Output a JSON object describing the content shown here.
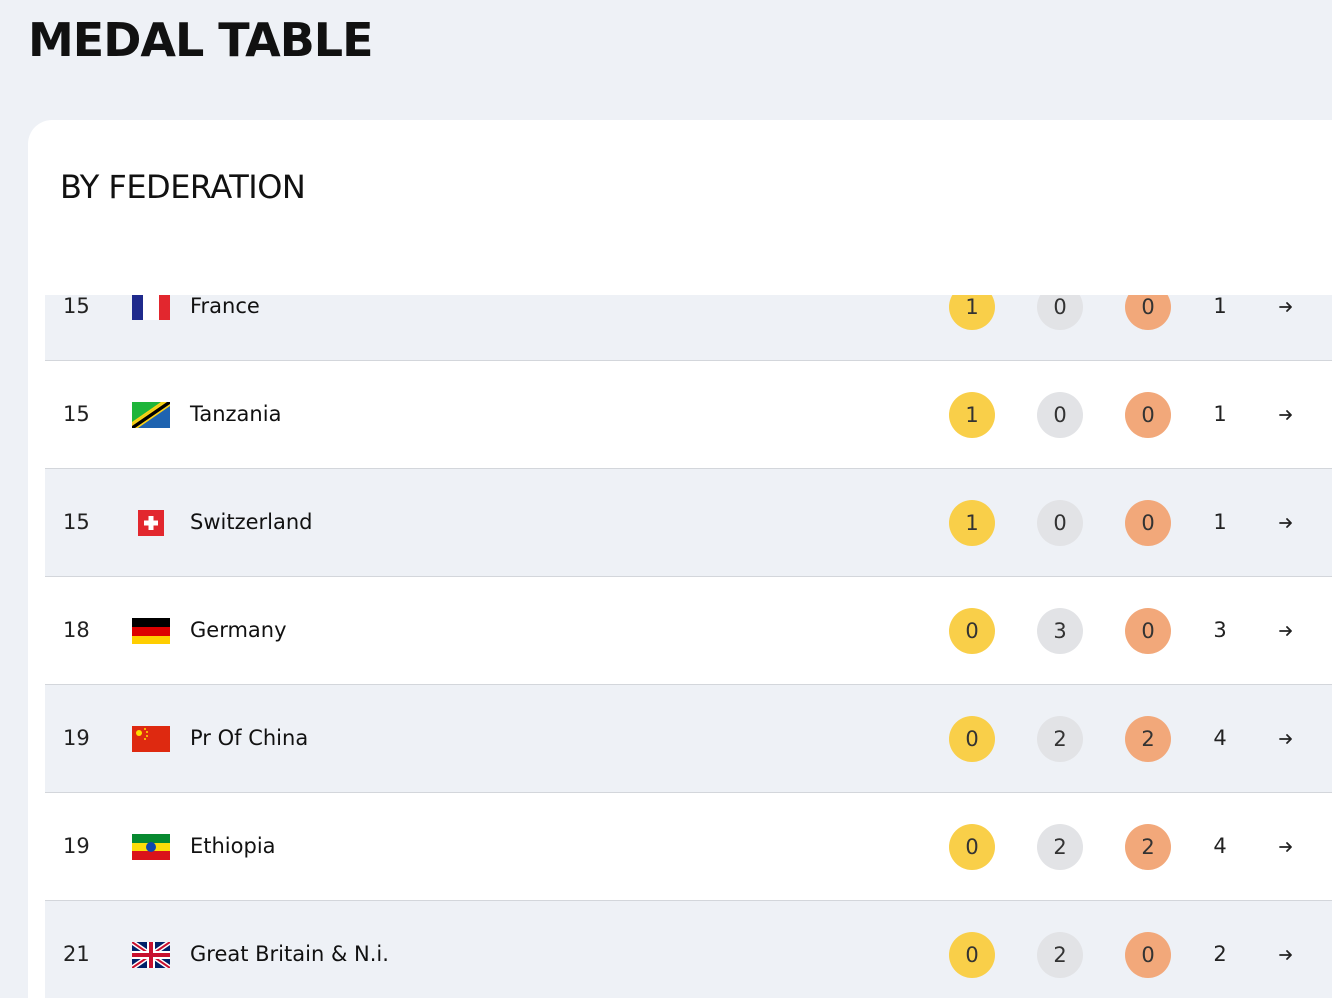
{
  "header": {
    "title": "MEDAL TABLE"
  },
  "section": {
    "title": "BY FEDERATION"
  },
  "table": {
    "rows": [
      {
        "rank": 15,
        "country": "France",
        "gold": 1,
        "silver": 0,
        "bronze": 0,
        "total": 1
      },
      {
        "rank": 15,
        "country": "Tanzania",
        "gold": 1,
        "silver": 0,
        "bronze": 0,
        "total": 1
      },
      {
        "rank": 15,
        "country": "Switzerland",
        "gold": 1,
        "silver": 0,
        "bronze": 0,
        "total": 1
      },
      {
        "rank": 18,
        "country": "Germany",
        "gold": 0,
        "silver": 3,
        "bronze": 0,
        "total": 3
      },
      {
        "rank": 19,
        "country": "Pr Of China",
        "gold": 0,
        "silver": 2,
        "bronze": 2,
        "total": 4
      },
      {
        "rank": 19,
        "country": "Ethiopia",
        "gold": 0,
        "silver": 2,
        "bronze": 2,
        "total": 4
      },
      {
        "rank": 21,
        "country": "Great Britain & N.i.",
        "gold": 0,
        "silver": 2,
        "bronze": 0,
        "total": 2
      }
    ]
  }
}
